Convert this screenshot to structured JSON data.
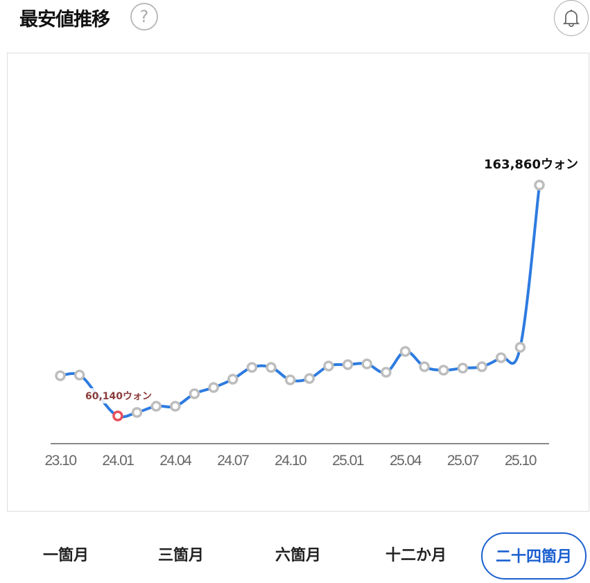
{
  "header": {
    "title": "最安値推移",
    "help_icon": "question-circle-icon",
    "alert_icon": "bell-icon"
  },
  "chart_data": {
    "type": "line",
    "title": "",
    "xlabel": "",
    "ylabel": "",
    "x": [
      "23.10",
      "23.11",
      "23.12",
      "24.01",
      "24.02",
      "24.03",
      "24.04",
      "24.05",
      "24.06",
      "24.07",
      "24.08",
      "24.09",
      "24.10",
      "24.11",
      "24.12",
      "25.01",
      "25.02",
      "25.03",
      "25.04",
      "25.05",
      "25.06",
      "25.07",
      "25.08",
      "25.09",
      "25.10",
      "25.11"
    ],
    "values": [
      78200,
      78500,
      68900,
      60140,
      61700,
      64500,
      64500,
      70100,
      72900,
      76650,
      81950,
      81950,
      76340,
      76960,
      82570,
      83190,
      83500,
      79760,
      89110,
      82260,
      80700,
      81630,
      82260,
      86310,
      90980,
      163860
    ],
    "tick_labels": [
      "23.10",
      "24.01",
      "24.04",
      "24.07",
      "24.10",
      "25.01",
      "25.04",
      "25.07",
      "25.10"
    ],
    "annotations": {
      "min_label": "60,140ウォン",
      "max_label": "163,860ウォン"
    },
    "grid": false,
    "colors": {
      "line": "#2d7be0",
      "point": "#bdbdbd",
      "min_point": "#e8505b",
      "min_label": "#8a3b3b",
      "axis": "#888"
    }
  },
  "tabs": [
    {
      "label": "一箇月"
    },
    {
      "label": "三箇月"
    },
    {
      "label": "六箇月"
    },
    {
      "label": "十二か月"
    },
    {
      "label": "二十四箇月",
      "selected": true
    }
  ]
}
